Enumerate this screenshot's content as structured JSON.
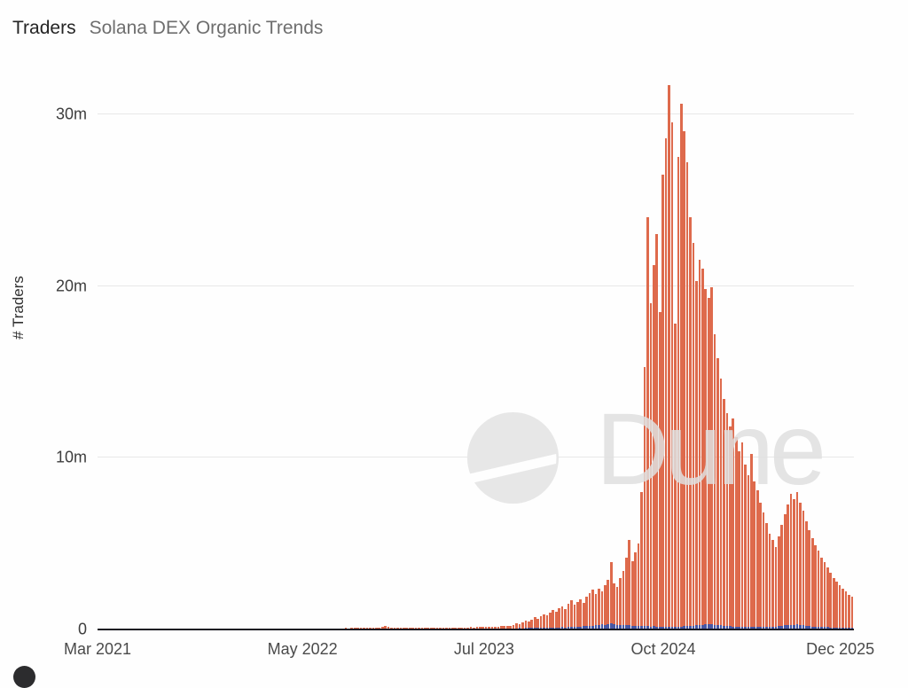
{
  "header": {
    "title": "Traders",
    "subtitle": "Solana DEX Organic Trends"
  },
  "watermark": {
    "text": "Dune"
  },
  "colors": {
    "bar_orange": "#de6a4c",
    "bar_blue": "#4757a4",
    "gridline": "#e8e8e8",
    "axis_line": "#191922",
    "watermark_gray": "#dfdfdf"
  },
  "chart_data": {
    "type": "bar",
    "title": "Traders — Solana DEX Organic Trends",
    "xlabel": "",
    "ylabel": "# Traders",
    "unit": "millions of traders",
    "interval": "weekly",
    "x_range": [
      "Mar 2021",
      "Dec 2025"
    ],
    "ylim": [
      0,
      32
    ],
    "grid": "horizontal",
    "legend": "none",
    "y_ticks": [
      {
        "label": "0",
        "value": 0
      },
      {
        "label": "10m",
        "value": 10
      },
      {
        "label": "20m",
        "value": 20
      },
      {
        "label": "30m",
        "value": 30
      }
    ],
    "x_ticks": [
      {
        "label": "Mar 2021",
        "pos": 0.0
      },
      {
        "label": "May 2022",
        "pos": 0.271
      },
      {
        "label": "Jul 2023",
        "pos": 0.511
      },
      {
        "label": "Oct 2024",
        "pos": 0.748
      },
      {
        "label": "Dec 2025",
        "pos": 0.982
      }
    ],
    "series": [
      {
        "name": "traders-orange",
        "color": "#de6a4c",
        "values": [
          0.02,
          0.03,
          0.02,
          0.02,
          0.03,
          0.02,
          0.02,
          0.03,
          0.03,
          0.02,
          0.02,
          0.03,
          0.02,
          0.03,
          0.02,
          0.02,
          0.03,
          0.02,
          0.03,
          0.02,
          0.03,
          0.03,
          0.04,
          0.03,
          0.03,
          0.04,
          0.03,
          0.04,
          0.03,
          0.03,
          0.04,
          0.04,
          0.03,
          0.04,
          0.04,
          0.03,
          0.04,
          0.04,
          0.05,
          0.04,
          0.04,
          0.05,
          0.04,
          0.04,
          0.05,
          0.04,
          0.05,
          0.04,
          0.04,
          0.05,
          0.04,
          0.04,
          0.05,
          0.05,
          0.04,
          0.05,
          0.04,
          0.05,
          0.05,
          0.04,
          0.05,
          0.05,
          0.06,
          0.05,
          0.05,
          0.06,
          0.05,
          0.06,
          0.05,
          0.06,
          0.06,
          0.05,
          0.06,
          0.06,
          0.07,
          0.06,
          0.06,
          0.07,
          0.06,
          0.07,
          0.07,
          0.08,
          0.07,
          0.08,
          0.09,
          0.08,
          0.09,
          0.1,
          0.09,
          0.1,
          0.11,
          0.1,
          0.12,
          0.15,
          0.19,
          0.16,
          0.12,
          0.09,
          0.08,
          0.09,
          0.08,
          0.08,
          0.09,
          0.08,
          0.09,
          0.08,
          0.09,
          0.09,
          0.08,
          0.09,
          0.09,
          0.09,
          0.1,
          0.09,
          0.1,
          0.1,
          0.11,
          0.1,
          0.11,
          0.12,
          0.11,
          0.12,
          0.13,
          0.12,
          0.14,
          0.15,
          0.14,
          0.16,
          0.15,
          0.17,
          0.18,
          0.17,
          0.19,
          0.2,
          0.21,
          0.22,
          0.28,
          0.34,
          0.3,
          0.4,
          0.5,
          0.45,
          0.55,
          0.7,
          0.64,
          0.8,
          0.9,
          0.84,
          1.0,
          1.15,
          1.05,
          1.25,
          1.35,
          1.2,
          1.5,
          1.7,
          1.45,
          1.6,
          1.75,
          1.55,
          1.9,
          2.1,
          2.3,
          2.05,
          2.4,
          2.2,
          2.6,
          2.9,
          3.9,
          2.7,
          2.5,
          3.0,
          3.4,
          4.2,
          5.2,
          4.0,
          4.5,
          5.0,
          8.0,
          15.3,
          24.0,
          19.0,
          21.2,
          23.0,
          18.5,
          26.5,
          28.6,
          31.7,
          29.5,
          17.8,
          27.5,
          30.6,
          29.0,
          27.2,
          24.0,
          22.5,
          20.3,
          21.5,
          21.0,
          19.8,
          19.3,
          19.9,
          17.2,
          15.8,
          14.6,
          13.4,
          12.6,
          11.8,
          12.3,
          11.2,
          10.4,
          10.9,
          9.6,
          9.0,
          10.2,
          8.6,
          8.1,
          7.4,
          6.8,
          6.2,
          5.6,
          5.2,
          4.8,
          5.4,
          6.1,
          6.7,
          7.3,
          7.9,
          7.6,
          8.0,
          7.4,
          6.9,
          6.3,
          5.8,
          5.3,
          4.9,
          4.6,
          4.2,
          3.9,
          3.6,
          3.3,
          3.0,
          2.8,
          2.6,
          2.4,
          2.2,
          2.0,
          1.9
        ]
      },
      {
        "name": "traders-blue",
        "color": "#4757a4",
        "values": [
          0,
          0,
          0,
          0,
          0,
          0,
          0,
          0,
          0,
          0,
          0,
          0,
          0,
          0,
          0,
          0,
          0,
          0,
          0,
          0,
          0,
          0,
          0,
          0,
          0,
          0,
          0,
          0,
          0,
          0,
          0,
          0,
          0,
          0,
          0,
          0,
          0,
          0,
          0,
          0,
          0,
          0,
          0,
          0,
          0,
          0,
          0,
          0,
          0,
          0,
          0,
          0,
          0,
          0,
          0,
          0,
          0,
          0,
          0,
          0,
          0,
          0,
          0,
          0,
          0,
          0,
          0,
          0,
          0,
          0,
          0,
          0,
          0,
          0,
          0,
          0,
          0,
          0,
          0,
          0,
          0,
          0,
          0,
          0,
          0,
          0,
          0,
          0,
          0,
          0,
          0,
          0,
          0,
          0,
          0,
          0,
          0,
          0,
          0,
          0,
          0.01,
          0.01,
          0.01,
          0.01,
          0.01,
          0.01,
          0.01,
          0.01,
          0.01,
          0.01,
          0.02,
          0.02,
          0.02,
          0.02,
          0.02,
          0.02,
          0.02,
          0.02,
          0.02,
          0.02,
          0.03,
          0.03,
          0.03,
          0.03,
          0.03,
          0.03,
          0.04,
          0.04,
          0.05,
          0.04,
          0.05,
          0.05,
          0.06,
          0.05,
          0.06,
          0.06,
          0.07,
          0.06,
          0.08,
          0.07,
          0.08,
          0.09,
          0.08,
          0.1,
          0.09,
          0.1,
          0.1,
          0.11,
          0.1,
          0.12,
          0.11,
          0.12,
          0.13,
          0.12,
          0.14,
          0.13,
          0.15,
          0.17,
          0.16,
          0.19,
          0.22,
          0.2,
          0.21,
          0.24,
          0.27,
          0.3,
          0.28,
          0.33,
          0.36,
          0.31,
          0.27,
          0.25,
          0.24,
          0.26,
          0.25,
          0.23,
          0.22,
          0.23,
          0.21,
          0.2,
          0.19,
          0.18,
          0.19,
          0.18,
          0.17,
          0.18,
          0.17,
          0.18,
          0.17,
          0.16,
          0.17,
          0.18,
          0.19,
          0.2,
          0.21,
          0.22,
          0.24,
          0.26,
          0.28,
          0.3,
          0.29,
          0.31,
          0.28,
          0.26,
          0.24,
          0.22,
          0.2,
          0.19,
          0.18,
          0.17,
          0.16,
          0.15,
          0.14,
          0.15,
          0.14,
          0.13,
          0.14,
          0.13,
          0.14,
          0.15,
          0.16,
          0.17,
          0.18,
          0.2,
          0.22,
          0.24,
          0.26,
          0.28,
          0.27,
          0.29,
          0.26,
          0.24,
          0.21,
          0.19,
          0.17,
          0.16,
          0.15,
          0.14,
          0.13,
          0.13,
          0.12,
          0.12,
          0.11,
          0.11,
          0.1,
          0.1,
          0.1,
          0.09
        ]
      }
    ]
  }
}
